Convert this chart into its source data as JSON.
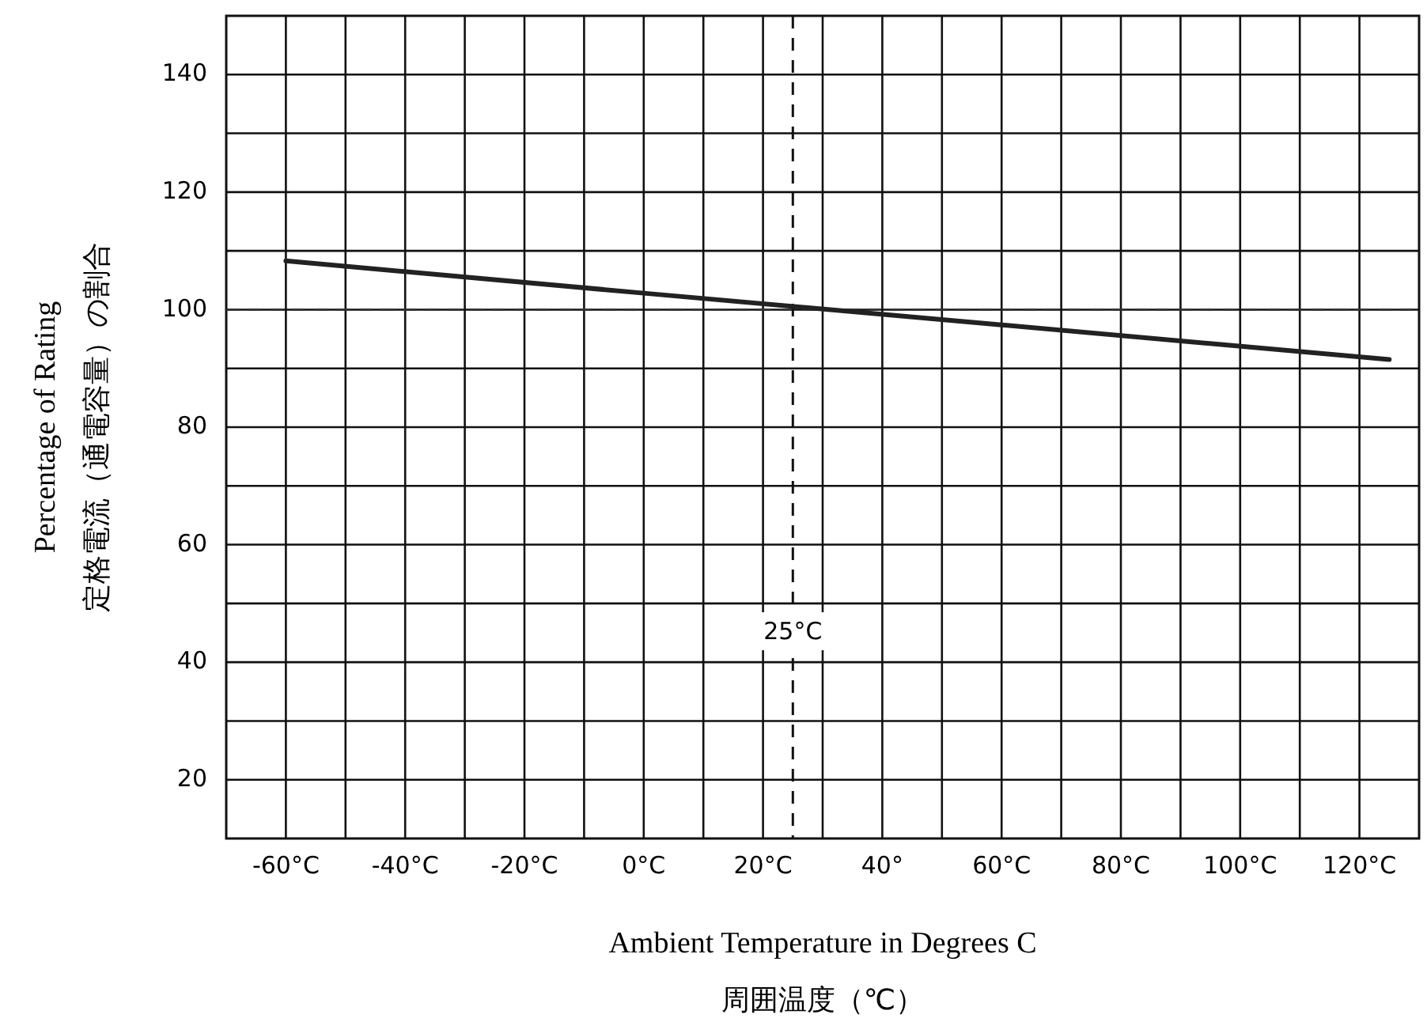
{
  "chart_data": {
    "type": "line",
    "xlabel": "Ambient Temperature in Degrees C\n周囲温度（℃）",
    "ylabel": "Percentage of Rating\n定格電流（通電容量）の割合",
    "x": [
      -60,
      0,
      60,
      125
    ],
    "series": [
      {
        "color": "#222222",
        "values": [
          108.3,
          102.8,
          97.4,
          91.5
        ]
      }
    ],
    "xlim": [
      -70,
      130
    ],
    "xticks": [
      {
        "value": -60,
        "label": "-60°C"
      },
      {
        "value": -50,
        "label": null
      },
      {
        "value": -40,
        "label": "-40°C"
      },
      {
        "value": -30,
        "label": null
      },
      {
        "value": -20,
        "label": "-20°C"
      },
      {
        "value": -10,
        "label": null
      },
      {
        "value": 0,
        "label": "0°C"
      },
      {
        "value": 10,
        "label": null
      },
      {
        "value": 20,
        "label": "20°C"
      },
      {
        "value": 30,
        "label": null
      },
      {
        "value": 40,
        "label": "40°"
      },
      {
        "value": 50,
        "label": null
      },
      {
        "value": 60,
        "label": "60°C"
      },
      {
        "value": 70,
        "label": null
      },
      {
        "value": 80,
        "label": "80°C"
      },
      {
        "value": 90,
        "label": null
      },
      {
        "value": 100,
        "label": "100°C"
      },
      {
        "value": 110,
        "label": null
      },
      {
        "value": 120,
        "label": "120°C"
      }
    ],
    "ylim": [
      10,
      150
    ],
    "yticks": [
      20,
      {
        "value": 30,
        "label": null
      },
      40,
      {
        "value": 50,
        "label": null
      },
      60,
      {
        "value": 70,
        "label": null
      },
      80,
      {
        "value": 90,
        "label": null
      },
      100,
      {
        "value": 110,
        "label": null
      },
      120,
      {
        "value": 130,
        "label": null
      },
      140
    ],
    "grid": true,
    "marker": "none",
    "line_style": "solid",
    "ref_lines": [
      {
        "axis": "y",
        "value": 100,
        "line_style": "dashed"
      },
      {
        "axis": "x",
        "value": 25,
        "label": "25°C",
        "line_style": "dashed"
      }
    ]
  }
}
